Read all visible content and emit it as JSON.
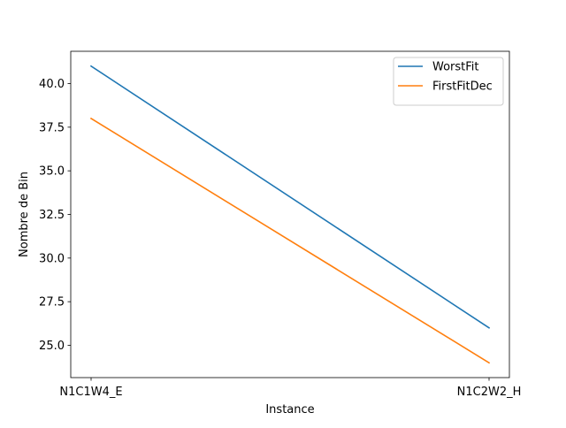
{
  "chart_data": {
    "type": "line",
    "title": "",
    "xlabel": "Instance",
    "ylabel": "Nombre de Bin",
    "categories": [
      "N1C1W4_E",
      "N1C2W2_H"
    ],
    "ylim": [
      23.15,
      41.85
    ],
    "yticks": [
      25.0,
      27.5,
      30.0,
      32.5,
      35.0,
      37.5,
      40.0
    ],
    "ytick_labels": [
      "25.0",
      "27.5",
      "30.0",
      "32.5",
      "35.0",
      "37.5",
      "40.0"
    ],
    "grid": false,
    "legend_position": "top-right",
    "series": [
      {
        "name": "WorstFit",
        "values": [
          41,
          26
        ],
        "color": "#1f77b4"
      },
      {
        "name": "FirstFitDec",
        "values": [
          38,
          24
        ],
        "color": "#ff7f0e"
      }
    ]
  }
}
